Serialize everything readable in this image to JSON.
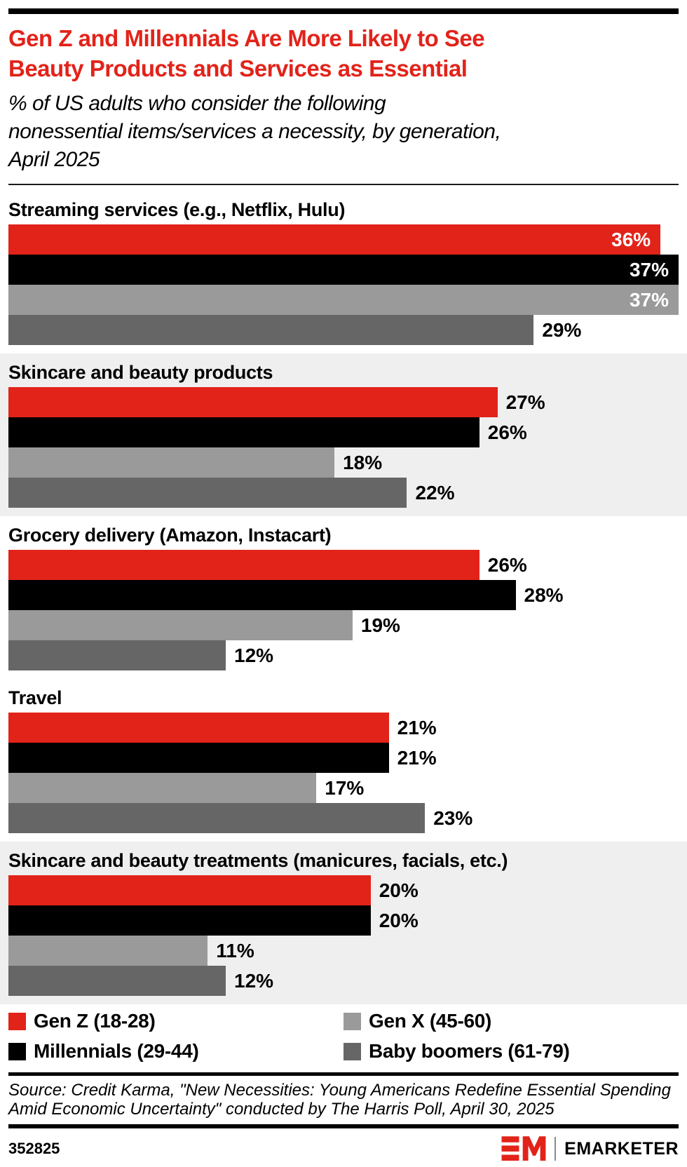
{
  "page": {
    "title": "Gen Z and Millennials Are More Likely to See\nBeauty Products and Services as Essential",
    "subtitle": "% of US adults who consider the following\nnonessential items/services a necessity, by generation,\nApril 2025"
  },
  "chart_data": {
    "type": "bar",
    "orientation": "horizontal",
    "value_suffix": "%",
    "xlim": [
      0,
      37
    ],
    "categories": [
      "Streaming services (e.g., Netflix, Hulu)",
      "Skincare and beauty products",
      "Grocery delivery (Amazon, Instacart)",
      "Travel",
      "Skincare and beauty treatments (manicures, facials, etc.)"
    ],
    "highlighted_rows": [
      1,
      4
    ],
    "series": [
      {
        "name": "Gen Z (18-28)",
        "color": "#e2231a",
        "values": [
          36,
          27,
          26,
          21,
          20
        ]
      },
      {
        "name": "Millennials (29-44)",
        "color": "#000000",
        "values": [
          37,
          26,
          28,
          21,
          20
        ]
      },
      {
        "name": "Gen X (45-60)",
        "color": "#9a9a9a",
        "values": [
          37,
          18,
          19,
          17,
          11
        ]
      },
      {
        "name": "Baby boomers (61-79)",
        "color": "#666666",
        "values": [
          29,
          22,
          12,
          23,
          12
        ]
      }
    ],
    "value_label_inside_threshold": 30,
    "legend_position": "bottom",
    "grid": false
  },
  "source": {
    "text": "Source: Credit Karma, \"New Necessities: Young Americans Redefine Essential Spending\nAmid Economic Uncertainty\" conducted by The Harris Poll, April 30, 2025"
  },
  "footer": {
    "chart_id": "352825",
    "brand": "EMARKETER"
  },
  "colors": {
    "accent_red": "#e2231a",
    "black": "#000000",
    "gray_light": "#9a9a9a",
    "gray_dark": "#666666",
    "highlight_bg": "#efefef",
    "label_inside": "#ffffff",
    "label_outside": "#000000"
  }
}
